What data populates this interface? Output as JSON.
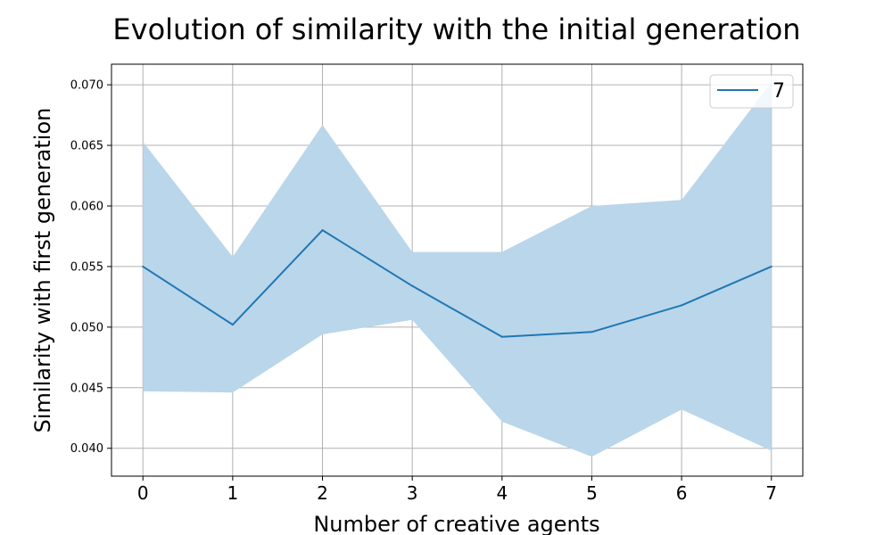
{
  "chart_data": {
    "type": "line",
    "title": "Evolution of similarity with the initial generation",
    "xlabel": "Number of creative agents",
    "ylabel": "Similarity with first generation",
    "x": [
      0,
      1,
      2,
      3,
      4,
      5,
      6,
      7
    ],
    "xlim": [
      -0.35,
      7.35
    ],
    "ylim": [
      0.0377,
      0.0717
    ],
    "xticks": [
      0,
      1,
      2,
      3,
      4,
      5,
      6,
      7
    ],
    "yticks": [
      0.04,
      0.045,
      0.05,
      0.055,
      0.06,
      0.065,
      0.07
    ],
    "ytick_labels": [
      "0.040",
      "0.045",
      "0.050",
      "0.055",
      "0.060",
      "0.065",
      "0.070"
    ],
    "grid": true,
    "legend_position": "top-right",
    "series": [
      {
        "name": "7",
        "color": "#1f77b4",
        "values": [
          0.055,
          0.0502,
          0.058,
          0.0534,
          0.0492,
          0.0496,
          0.0518,
          0.055
        ],
        "band_upper": [
          0.0653,
          0.0558,
          0.0667,
          0.0562,
          0.0562,
          0.06,
          0.0605,
          0.0702
        ],
        "band_lower": [
          0.0447,
          0.0446,
          0.0494,
          0.0506,
          0.0422,
          0.0393,
          0.0432,
          0.0398
        ],
        "band_color": "#bad6ea"
      }
    ]
  }
}
